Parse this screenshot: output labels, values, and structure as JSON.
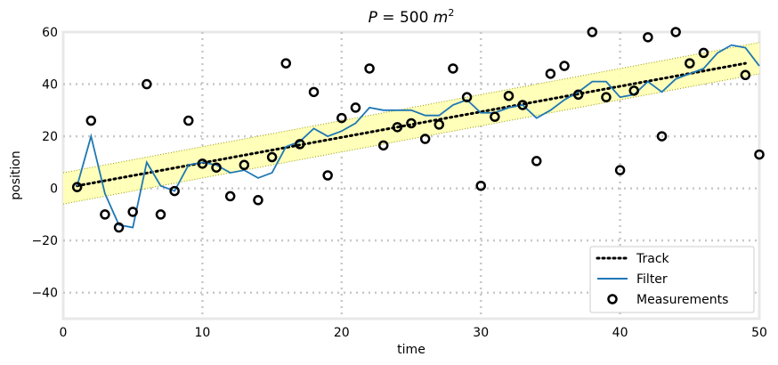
{
  "chart_data": {
    "type": "line",
    "title": "P = 500 m²",
    "xlabel": "time",
    "ylabel": "position",
    "xlim": [
      0,
      50
    ],
    "ylim": [
      -50,
      60
    ],
    "xticks": [
      0,
      10,
      20,
      30,
      40,
      50
    ],
    "yticks": [
      -40,
      -20,
      0,
      20,
      40,
      60
    ],
    "grid": true,
    "legend_position": "bottom-right",
    "colors": {
      "track": "#000000",
      "filter": "#1f77b4",
      "measurements": "#000000",
      "band_fill": "#ffffb3",
      "band_edge": "#999900"
    },
    "series": [
      {
        "name": "Track",
        "style": "dotted",
        "x": [
          1,
          49
        ],
        "y": [
          1,
          48
        ]
      },
      {
        "name": "Filter",
        "style": "solid",
        "x": [
          1,
          2,
          3,
          4,
          5,
          6,
          7,
          8,
          9,
          10,
          11,
          12,
          13,
          14,
          15,
          16,
          17,
          18,
          19,
          20,
          21,
          22,
          23,
          24,
          25,
          26,
          27,
          28,
          29,
          30,
          31,
          32,
          33,
          34,
          35,
          36,
          37,
          38,
          39,
          40,
          41,
          42,
          43,
          44,
          45,
          46,
          47,
          48,
          49,
          50
        ],
        "y": [
          1,
          20,
          -2,
          -14,
          -15,
          10,
          1,
          -1,
          9,
          10,
          9,
          6,
          7,
          4,
          6,
          16,
          18,
          23,
          20,
          22,
          25,
          31,
          30,
          30,
          30,
          28,
          28,
          32,
          34,
          29,
          29,
          31,
          32,
          27,
          30,
          34,
          37,
          41,
          41,
          35,
          36,
          41,
          37,
          42,
          44,
          46,
          52,
          55,
          54,
          47
        ],
        "band_upper": [
          7,
          8,
          9,
          10,
          11,
          12,
          13,
          14,
          15,
          16,
          17,
          18,
          19,
          20,
          21,
          22,
          23,
          24,
          25,
          26,
          27,
          28,
          29,
          30,
          31,
          32,
          33,
          34,
          35,
          36,
          37,
          38,
          39,
          40,
          41,
          42,
          43,
          44,
          45,
          46,
          47,
          48,
          49,
          50,
          51,
          52,
          53,
          54,
          55,
          56
        ],
        "band_lower": [
          -5,
          -4,
          -3,
          -2,
          -1,
          0,
          1,
          2,
          3,
          4,
          5,
          6,
          7,
          8,
          9,
          10,
          11,
          12,
          13,
          14,
          15,
          16,
          17,
          18,
          19,
          20,
          21,
          22,
          23,
          24,
          25,
          26,
          27,
          28,
          29,
          30,
          31,
          32,
          33,
          34,
          35,
          36,
          37,
          38,
          39,
          40,
          41,
          42,
          43,
          44
        ]
      },
      {
        "name": "Measurements",
        "style": "markers",
        "x": [
          1,
          2,
          3,
          4,
          5,
          6,
          7,
          8,
          9,
          10,
          11,
          12,
          13,
          14,
          15,
          16,
          17,
          18,
          19,
          20,
          21,
          22,
          23,
          24,
          25,
          26,
          27,
          28,
          29,
          30,
          31,
          32,
          33,
          34,
          35,
          36,
          37,
          38,
          39,
          40,
          41,
          42,
          43,
          44,
          45,
          46,
          47,
          48,
          49,
          50
        ],
        "y": [
          0.5,
          26,
          -10,
          -15,
          -9,
          40,
          -10,
          -1,
          26,
          9.5,
          8,
          -3,
          9,
          -4.5,
          12,
          48,
          17,
          37,
          5,
          27,
          31,
          46,
          16.5,
          23.5,
          25,
          19,
          24.5,
          46,
          35,
          1,
          27.5,
          35.5,
          32,
          10.5,
          44,
          47,
          36,
          60,
          35,
          7,
          37.5,
          58,
          20,
          60,
          48,
          52,
          null,
          null,
          43.5,
          13
        ]
      }
    ]
  }
}
